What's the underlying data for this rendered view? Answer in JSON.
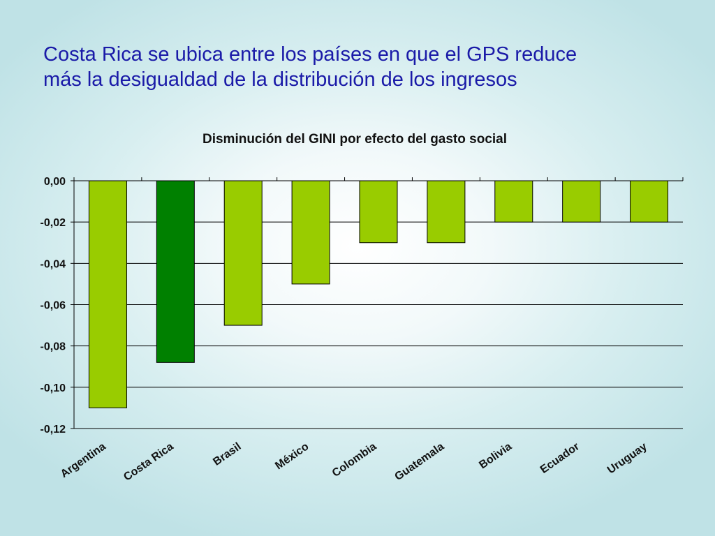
{
  "slide": {
    "title_line1": "Costa Rica se ubica entre los países en que el GPS reduce",
    "title_line2": "más la desigualdad de la distribución de los ingresos"
  },
  "chart_data": {
    "type": "bar",
    "title": "Disminución del GINI por efecto del gasto social",
    "categories": [
      "Argentina",
      "Costa Rica",
      "Brasil",
      "México",
      "Colombia",
      "Guatemala",
      "Bolivia",
      "Ecuador",
      "Uruguay"
    ],
    "values": [
      -0.11,
      -0.088,
      -0.07,
      -0.05,
      -0.03,
      -0.03,
      -0.02,
      -0.02,
      -0.02
    ],
    "ylim": [
      -0.12,
      0
    ],
    "yticks": [
      "0,00",
      "-0,02",
      "-0,04",
      "-0,06",
      "-0,08",
      "-0,10",
      "-0,12"
    ],
    "xlabel": "",
    "ylabel": "",
    "grid": true,
    "colors": {
      "default_bar": "#99cc00",
      "highlight_bar": "#008000",
      "highlight_category": "Costa Rica",
      "bar_outline": "#000000"
    }
  }
}
